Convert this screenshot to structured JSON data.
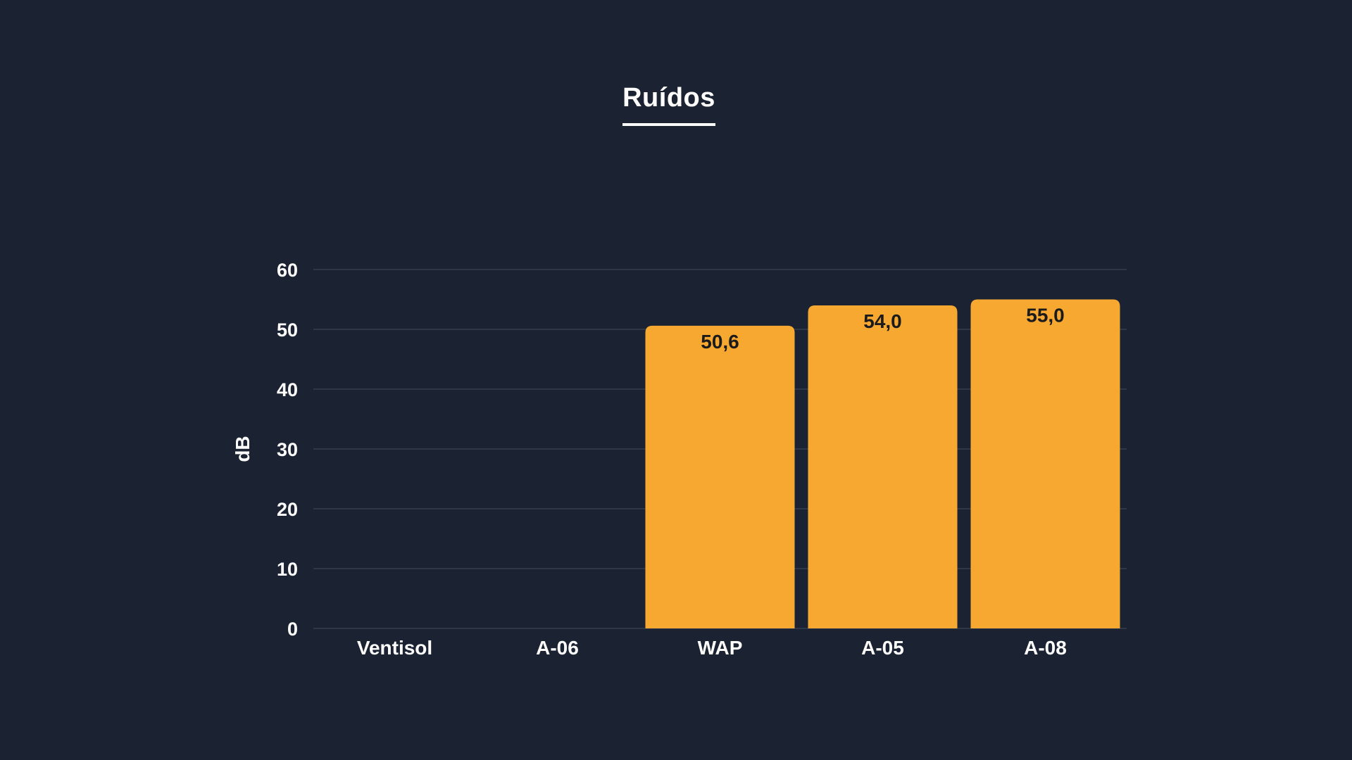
{
  "chart_data": {
    "type": "bar",
    "title": "Ruídos",
    "ylabel": "dB",
    "xlabel": "",
    "categories": [
      "Ventisol",
      "A-06",
      "WAP",
      "A-05",
      "A-08"
    ],
    "values": [
      null,
      null,
      50.6,
      54.0,
      55.0
    ],
    "value_labels": [
      "",
      "",
      "50,6",
      "54,0",
      "55,0"
    ],
    "ylim": [
      0,
      60
    ],
    "yticks": [
      0,
      10,
      20,
      30,
      40,
      50,
      60
    ],
    "grid": true,
    "legend": "none",
    "bar_color": "#f7a830",
    "background_color": "#1b2333",
    "grid_color": "#2e3748"
  }
}
